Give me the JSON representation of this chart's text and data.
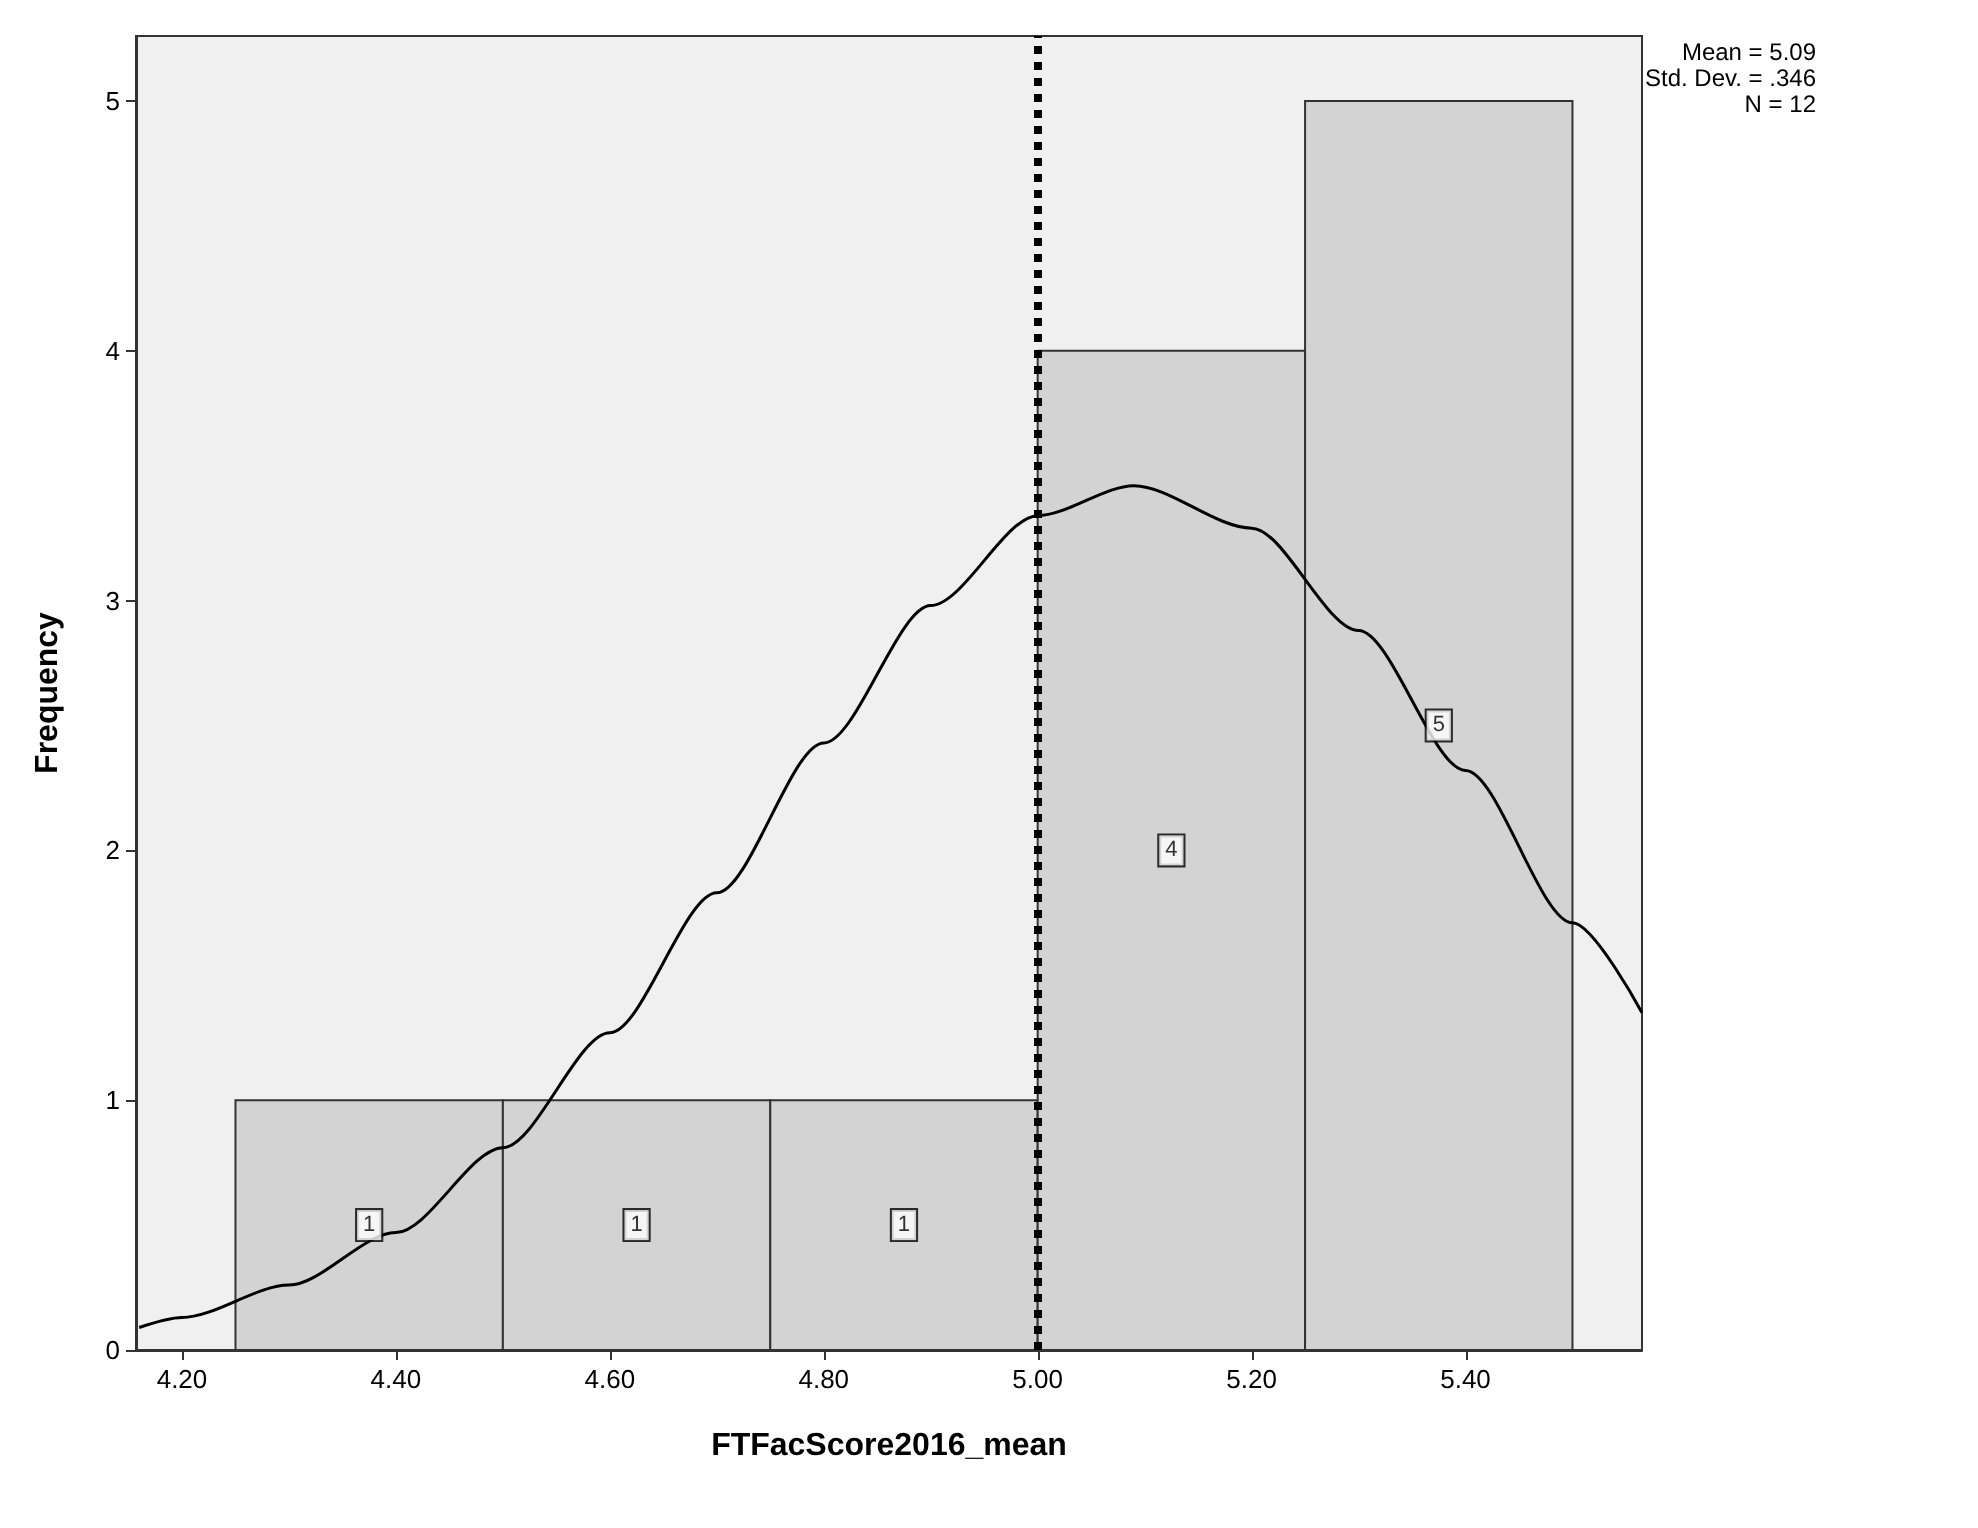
{
  "chart_data": {
    "type": "histogram",
    "xlabel": "FTFacScore2016_mean",
    "ylabel": "Frequency",
    "bins": [
      4.25,
      4.5,
      4.75,
      5.0,
      5.25,
      5.5
    ],
    "values": [
      1,
      1,
      1,
      4,
      5
    ],
    "color": "#d3d3d3",
    "series": [
      {
        "type": "line",
        "color": "#000000",
        "x": [
          4.16,
          4.2,
          4.3,
          4.4,
          4.5,
          4.6,
          4.7,
          4.8,
          4.9,
          5.0,
          5.09,
          5.2,
          5.3,
          5.4,
          5.5,
          5.565
        ],
        "values": [
          0.09,
          0.13,
          0.26,
          0.47,
          0.81,
          1.27,
          1.83,
          2.43,
          2.98,
          3.34,
          3.46,
          3.29,
          2.88,
          2.32,
          1.71,
          1.35
        ]
      }
    ],
    "xlim": [
      4.157,
      5.565
    ],
    "ylim": [
      0,
      5.26
    ],
    "xticks": [
      {
        "value": 4.2,
        "label": "4.20"
      },
      {
        "value": 4.4,
        "label": "4.40"
      },
      {
        "value": 4.6,
        "label": "4.60"
      },
      {
        "value": 4.8,
        "label": "4.80"
      },
      {
        "value": 5.0,
        "label": "5.00"
      },
      {
        "value": 5.2,
        "label": "5.20"
      },
      {
        "value": 5.4,
        "label": "5.40"
      }
    ],
    "yticks": [
      0,
      1,
      2,
      3,
      4,
      5
    ],
    "ref_lines": [
      {
        "axis": "x",
        "value": 5.0,
        "color": "#000000",
        "line_style": "dotted"
      }
    ],
    "annotations": [
      "Mean = 5.09",
      "Std. Dev. = .346",
      "N = 12"
    ],
    "value_labels": [
      "1",
      "1",
      "1",
      "4",
      "5"
    ],
    "grid": false,
    "legend": false
  }
}
